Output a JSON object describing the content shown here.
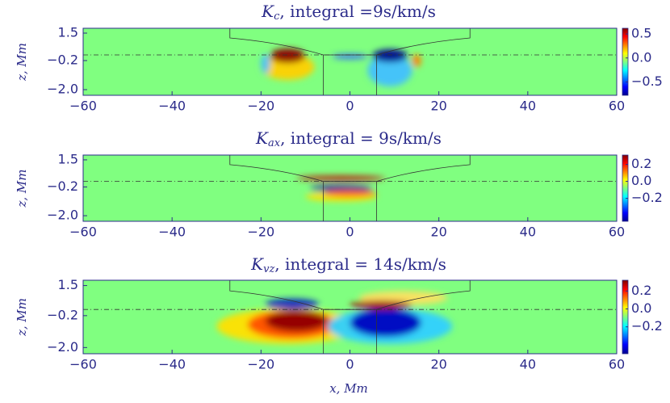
{
  "chart_data": [
    {
      "type": "heatmap",
      "title_symbol": "K",
      "title_subscript": "c",
      "title": ", integral =9s/km/s",
      "xlim": [
        -60,
        60
      ],
      "xticks": [
        {
          "value": -60,
          "label": "−60"
        },
        {
          "value": -40,
          "label": "−40"
        },
        {
          "value": -20,
          "label": "−20"
        },
        0,
        20,
        40,
        60
      ],
      "ylim": [
        -2.35,
        1.8
      ],
      "yticks": [
        1.5,
        {
          "value": -0.2,
          "label": "−0.2"
        },
        {
          "value": -2.0,
          "label": "−2.0"
        }
      ],
      "ylabel": "z, Mm",
      "colorbar": {
        "lim": [
          -0.78,
          0.62
        ],
        "ticks": [
          0.5,
          {
            "value": 0.0,
            "label": "0.0"
          },
          {
            "value": -0.5,
            "label": "−0.5"
          }
        ]
      }
    },
    {
      "type": "heatmap",
      "title_symbol": "K",
      "title_subscript": "ax",
      "title": ", integral = 9s/km/s",
      "xlim": [
        -60,
        60
      ],
      "xticks": [
        {
          "value": -60,
          "label": "−60"
        },
        {
          "value": -40,
          "label": "−40"
        },
        {
          "value": -20,
          "label": "−20"
        },
        0,
        20,
        40,
        60
      ],
      "ylim": [
        -2.35,
        1.8
      ],
      "yticks": [
        1.5,
        {
          "value": -0.2,
          "label": "−0.2"
        },
        {
          "value": -2.0,
          "label": "−2.0"
        }
      ],
      "ylabel": "z, Mm",
      "colorbar": {
        "lim": [
          -0.47,
          0.31
        ],
        "ticks": [
          0.2,
          {
            "value": 0.0,
            "label": "0.0"
          },
          {
            "value": -0.2,
            "label": "−0.2"
          }
        ]
      }
    },
    {
      "type": "heatmap",
      "title_symbol": "K",
      "title_subscript": "vz",
      "title": ", integral = 14s/km/s",
      "xlim": [
        -60,
        60
      ],
      "xticks": [
        {
          "value": -60,
          "label": "−60"
        },
        {
          "value": -40,
          "label": "−40"
        },
        {
          "value": -20,
          "label": "−20"
        },
        0,
        20,
        40,
        60
      ],
      "ylim": [
        -2.35,
        1.8
      ],
      "yticks": [
        1.5,
        {
          "value": -0.2,
          "label": "−0.2"
        },
        {
          "value": -2.0,
          "label": "−2.0"
        }
      ],
      "ylabel": "z, Mm",
      "xlabel": "x, Mm",
      "colorbar": {
        "lim": [
          -0.5,
          0.32
        ],
        "ticks": [
          0.2,
          {
            "value": 0.0,
            "label": "0.0"
          },
          {
            "value": -0.2,
            "label": "−0.2"
          }
        ]
      }
    }
  ]
}
